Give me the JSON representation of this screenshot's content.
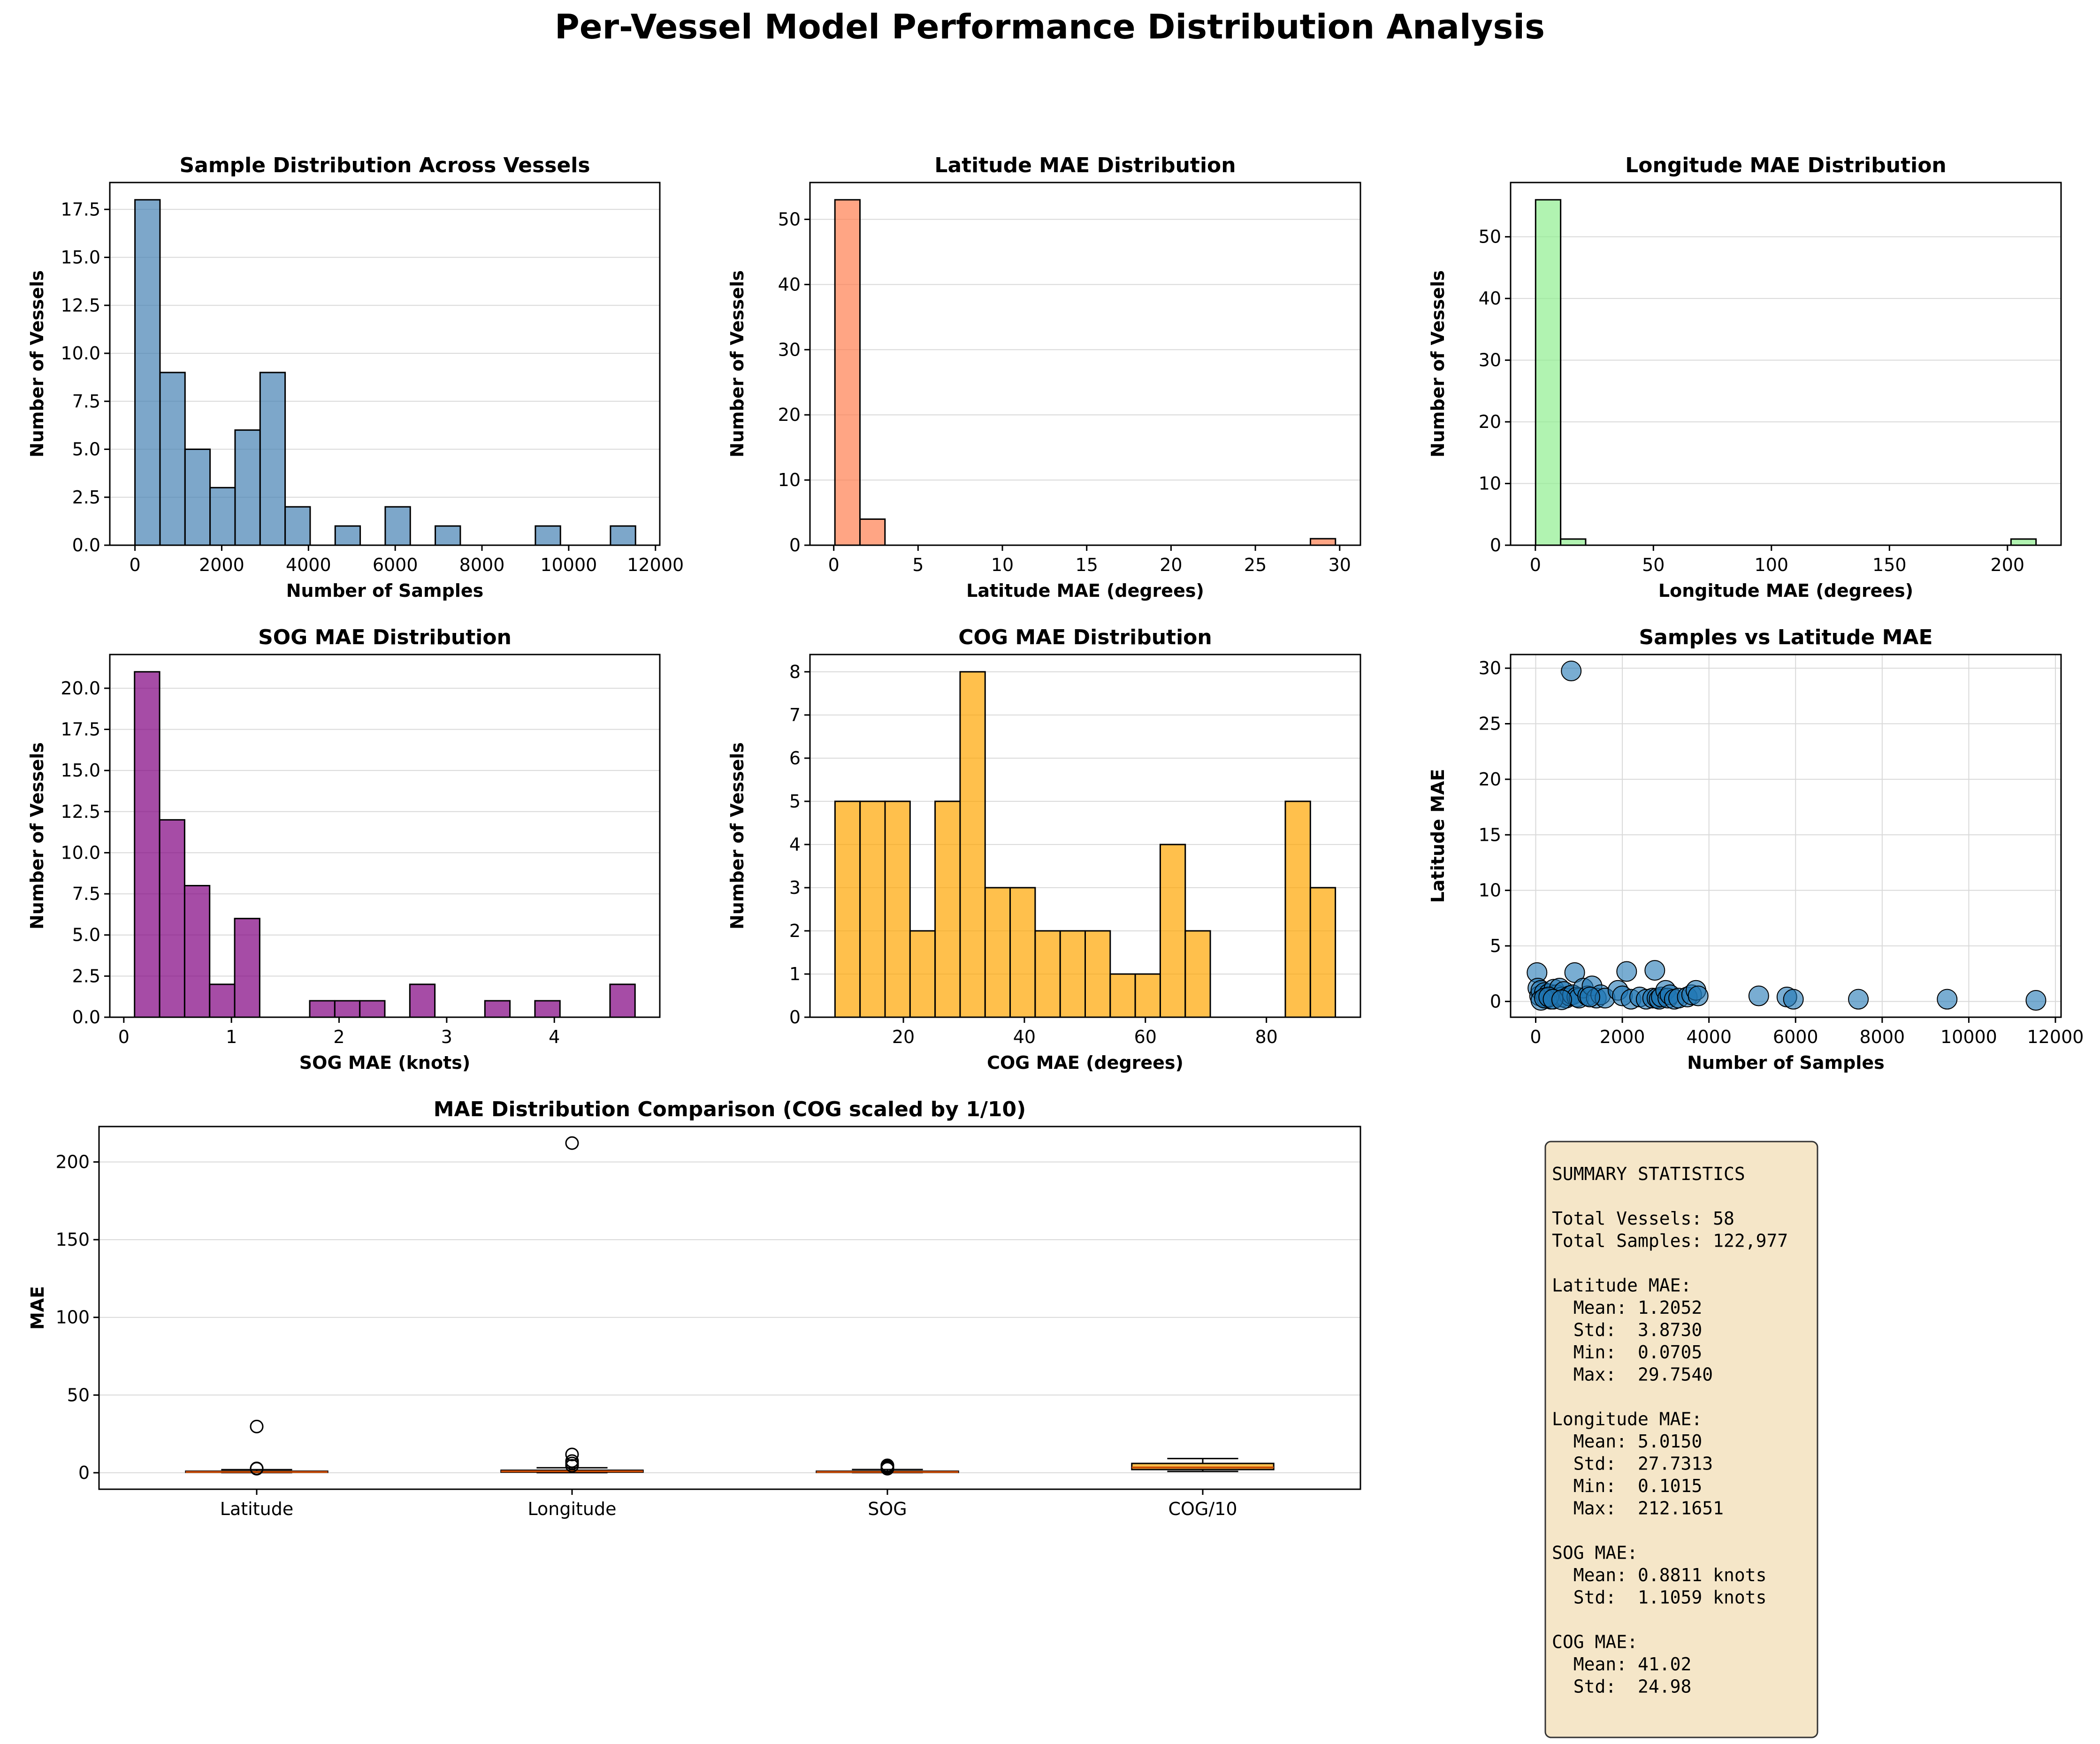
{
  "suptitle": "Per-Vessel Model Performance Distribution Analysis",
  "chart_data": [
    {
      "id": "samples",
      "type": "bar",
      "title": "Sample Distribution Across Vessels",
      "xlabel": "Number of Samples",
      "ylabel": "Number of Vessels",
      "color": "#4682b4",
      "bin_edges": [
        0,
        577,
        1154,
        1731,
        2308,
        2885,
        3462,
        4039,
        4616,
        5193,
        5770,
        6347,
        6924,
        7501,
        8078,
        8655,
        9232,
        9809,
        10386,
        10963,
        11540
      ],
      "counts": [
        18,
        9,
        5,
        3,
        6,
        9,
        2,
        0,
        1,
        0,
        2,
        0,
        1,
        0,
        0,
        0,
        1,
        0,
        0,
        1
      ],
      "xlim": [
        -580,
        12100
      ],
      "ylim": [
        0,
        18.9
      ],
      "xticks": [
        0,
        2000,
        4000,
        6000,
        8000,
        10000,
        12000
      ],
      "yticks": [
        0,
        2.5,
        5,
        7.5,
        10,
        12.5,
        15,
        17.5
      ],
      "ytick_labels": [
        "0.0",
        "2.5",
        "5.0",
        "7.5",
        "10.0",
        "12.5",
        "15.0",
        "17.5"
      ],
      "grid": "y"
    },
    {
      "id": "lat",
      "type": "bar",
      "title": "Latitude MAE Distribution",
      "xlabel": "Latitude MAE (degrees)",
      "ylabel": "Number of Vessels",
      "color": "#ff7f50",
      "bin_edges": [
        0.07,
        1.554,
        3.038,
        4.522,
        6.006,
        7.49,
        8.974,
        10.458,
        11.942,
        13.426,
        14.91,
        16.394,
        17.878,
        19.362,
        20.846,
        22.33,
        23.814,
        25.298,
        26.782,
        28.266,
        29.75
      ],
      "counts": [
        53,
        4,
        0,
        0,
        0,
        0,
        0,
        0,
        0,
        0,
        0,
        0,
        0,
        0,
        0,
        0,
        0,
        0,
        0,
        1
      ],
      "xlim": [
        -1.41,
        31.23
      ],
      "ylim": [
        0,
        55.65
      ],
      "xticks": [
        0,
        5,
        10,
        15,
        20,
        25,
        30
      ],
      "yticks": [
        0,
        10,
        20,
        30,
        40,
        50
      ],
      "grid": "y"
    },
    {
      "id": "lon",
      "type": "bar",
      "title": "Longitude MAE Distribution",
      "xlabel": "Longitude MAE (degrees)",
      "ylabel": "Number of Vessels",
      "color": "#90ee90",
      "bin_edges": [
        0.1,
        10.7,
        21.3,
        31.9,
        42.5,
        53.1,
        63.7,
        74.3,
        84.9,
        95.5,
        106.1,
        116.7,
        127.3,
        137.9,
        148.5,
        159.1,
        169.7,
        180.3,
        190.9,
        201.5,
        212.1
      ],
      "counts": [
        56,
        1,
        0,
        0,
        0,
        0,
        0,
        0,
        0,
        0,
        0,
        0,
        0,
        0,
        0,
        0,
        0,
        0,
        0,
        1
      ],
      "xlim": [
        -10.5,
        222.7
      ],
      "ylim": [
        0,
        58.8
      ],
      "xticks": [
        0,
        50,
        100,
        150,
        200
      ],
      "yticks": [
        0,
        10,
        20,
        30,
        40,
        50
      ],
      "grid": "y"
    },
    {
      "id": "sog",
      "type": "bar",
      "title": "SOG MAE Distribution",
      "xlabel": "SOG MAE (knots)",
      "ylabel": "Number of Vessels",
      "color": "#800080",
      "bin_edges": [
        0.1,
        0.3325,
        0.565,
        0.7975,
        1.03,
        1.2625,
        1.495,
        1.7275,
        1.96,
        2.1925,
        2.425,
        2.6575,
        2.89,
        3.1225,
        3.355,
        3.5875,
        3.82,
        4.0525,
        4.285,
        4.5175,
        4.75
      ],
      "counts": [
        21,
        12,
        8,
        2,
        6,
        0,
        0,
        1,
        1,
        1,
        0,
        2,
        0,
        0,
        1,
        0,
        1,
        0,
        0,
        2
      ],
      "xlim": [
        -0.13,
        4.98
      ],
      "ylim": [
        0,
        22.05
      ],
      "xticks": [
        0,
        1,
        2,
        3,
        4
      ],
      "yticks": [
        0,
        2.5,
        5,
        7.5,
        10,
        12.5,
        15,
        17.5,
        20
      ],
      "ytick_labels": [
        "0.0",
        "2.5",
        "5.0",
        "7.5",
        "10.0",
        "12.5",
        "15.0",
        "17.5",
        "20.0"
      ],
      "grid": "y"
    },
    {
      "id": "cog",
      "type": "bar",
      "title": "COG MAE Distribution",
      "xlabel": "COG MAE (degrees)",
      "ylabel": "Number of Vessels",
      "color": "#ffa500",
      "bin_edges": [
        8.7,
        12.835,
        16.97,
        21.105,
        25.24,
        29.375,
        33.51,
        37.645,
        41.78,
        45.915,
        50.05,
        54.185,
        58.32,
        62.455,
        66.59,
        70.725,
        74.86,
        78.995,
        83.13,
        87.265,
        91.4
      ],
      "counts": [
        5,
        5,
        5,
        2,
        5,
        8,
        3,
        3,
        2,
        2,
        2,
        1,
        1,
        4,
        2,
        0,
        0,
        0,
        5,
        3
      ],
      "xlim": [
        4.56,
        95.54
      ],
      "ylim": [
        0,
        8.4
      ],
      "xticks": [
        20,
        40,
        60,
        80
      ],
      "yticks": [
        0,
        1,
        2,
        3,
        4,
        5,
        6,
        7,
        8
      ],
      "grid": "y"
    },
    {
      "id": "scatter",
      "type": "scatter",
      "title": "Samples vs Latitude MAE",
      "xlabel": "Number of Samples",
      "ylabel": "Latitude MAE",
      "color": "#1f77b4",
      "x": [
        820,
        30,
        50,
        90,
        120,
        200,
        250,
        300,
        350,
        420,
        480,
        550,
        600,
        650,
        700,
        780,
        850,
        900,
        950,
        1000,
        1100,
        1200,
        1300,
        1400,
        1500,
        1600,
        1900,
        2000,
        2100,
        2200,
        2400,
        2550,
        2700,
        2750,
        2800,
        2850,
        2900,
        3000,
        3050,
        3100,
        3200,
        3300,
        3500,
        3600,
        3700,
        3750,
        120,
        200,
        300,
        400,
        600,
        1250,
        5150,
        5800,
        5950,
        7450,
        9500,
        11550
      ],
      "y": [
        29.75,
        2.6,
        1.2,
        0.5,
        1.0,
        0.8,
        0.3,
        0.7,
        0.2,
        1.1,
        0.6,
        1.2,
        0.4,
        0.9,
        0.3,
        0.5,
        0.6,
        2.6,
        0.4,
        0.3,
        1.2,
        0.5,
        1.4,
        0.3,
        0.6,
        0.3,
        1.0,
        0.5,
        2.7,
        0.2,
        0.4,
        0.2,
        0.3,
        2.8,
        0.3,
        0.2,
        0.4,
        1.0,
        0.3,
        0.6,
        0.2,
        0.3,
        0.4,
        0.6,
        1.0,
        0.5,
        0.1,
        0.3,
        0.4,
        0.2,
        0.15,
        0.4,
        0.5,
        0.4,
        0.2,
        0.2,
        0.2,
        0.1
      ],
      "xlim": [
        -580,
        12130
      ],
      "ylim": [
        -1.42,
        31.23
      ],
      "xticks": [
        0,
        2000,
        4000,
        6000,
        8000,
        10000,
        12000
      ],
      "yticks": [
        0,
        5,
        10,
        15,
        20,
        25,
        30
      ],
      "grid": "both"
    },
    {
      "id": "box",
      "type": "box",
      "title": "MAE Distribution Comparison (COG scaled by 1/10)",
      "xlabel": "",
      "ylabel": "MAE",
      "box_color": "#ffa500",
      "median_color": "#c84b00",
      "categories": [
        "Latitude",
        "Longitude",
        "SOG",
        "COG/10"
      ],
      "boxes": [
        {
          "whislo": 0.07,
          "q1": 0.3,
          "med": 0.5,
          "q3": 1.0,
          "whishi": 2.0,
          "fliers": [
            2.6,
            2.7,
            2.8,
            29.75
          ]
        },
        {
          "whislo": 0.1,
          "q1": 0.4,
          "med": 0.9,
          "q3": 1.6,
          "whishi": 3.2,
          "fliers": [
            4.5,
            6.0,
            7.5,
            11.8,
            212.17
          ]
        },
        {
          "whislo": 0.1,
          "q1": 0.25,
          "med": 0.5,
          "q3": 1.0,
          "whishi": 2.1,
          "fliers": [
            2.6,
            2.7,
            3.4,
            3.9,
            4.7,
            4.75
          ]
        },
        {
          "whislo": 0.87,
          "q1": 2.05,
          "med": 3.4,
          "q3": 6.0,
          "whishi": 9.14,
          "fliers": []
        }
      ],
      "xlim": [
        0.5,
        4.5
      ],
      "ylim": [
        -10.6,
        222.8
      ],
      "yticks": [
        0,
        50,
        100,
        150,
        200
      ],
      "grid": "y"
    }
  ],
  "summary": {
    "lines": [
      "SUMMARY STATISTICS",
      "",
      "Total Vessels: 58",
      "Total Samples: 122,977",
      "",
      "Latitude MAE:",
      "  Mean: 1.2052",
      "  Std:  3.8730",
      "  Min:  0.0705",
      "  Max:  29.7540",
      "",
      "Longitude MAE:",
      "  Mean: 5.0150",
      "  Std:  27.7313",
      "  Min:  0.1015",
      "  Max:  212.1651",
      "",
      "SOG MAE:",
      "  Mean: 0.8811 knots",
      "  Std:  1.1059 knots",
      "",
      "COG MAE:",
      "  Mean: 41.02",
      "  Std:  24.98"
    ],
    "box_fill": "#f5e6c8"
  }
}
